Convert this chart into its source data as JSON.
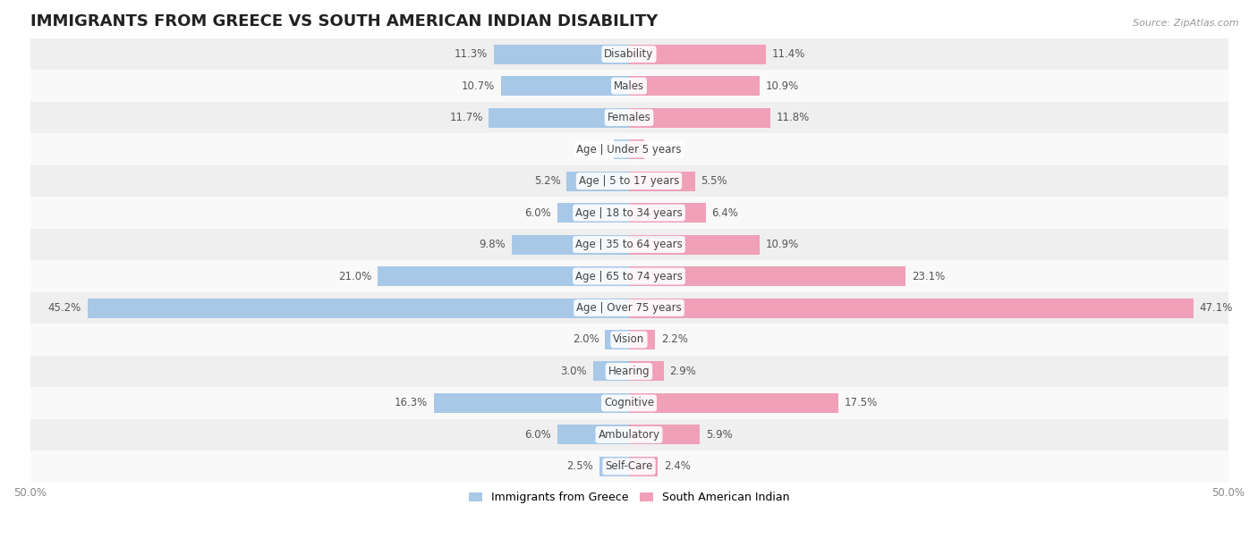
{
  "title": "IMMIGRANTS FROM GREECE VS SOUTH AMERICAN INDIAN DISABILITY",
  "source": "Source: ZipAtlas.com",
  "categories": [
    "Disability",
    "Males",
    "Females",
    "Age | Under 5 years",
    "Age | 5 to 17 years",
    "Age | 18 to 34 years",
    "Age | 35 to 64 years",
    "Age | 65 to 74 years",
    "Age | Over 75 years",
    "Vision",
    "Hearing",
    "Cognitive",
    "Ambulatory",
    "Self-Care"
  ],
  "greece_values": [
    11.3,
    10.7,
    11.7,
    1.3,
    5.2,
    6.0,
    9.8,
    21.0,
    45.2,
    2.0,
    3.0,
    16.3,
    6.0,
    2.5
  ],
  "indian_values": [
    11.4,
    10.9,
    11.8,
    1.3,
    5.5,
    6.4,
    10.9,
    23.1,
    47.1,
    2.2,
    2.9,
    17.5,
    5.9,
    2.4
  ],
  "greece_color": "#a8c8e8",
  "indian_color": "#f0a0b8",
  "bar_height": 0.62,
  "xlim": 50.0,
  "bg_row_light": "#efefef",
  "bg_row_white": "#f9f9f9",
  "title_fontsize": 13,
  "value_fontsize": 8.5,
  "cat_fontsize": 8.5,
  "tick_fontsize": 8.5,
  "legend_fontsize": 9
}
